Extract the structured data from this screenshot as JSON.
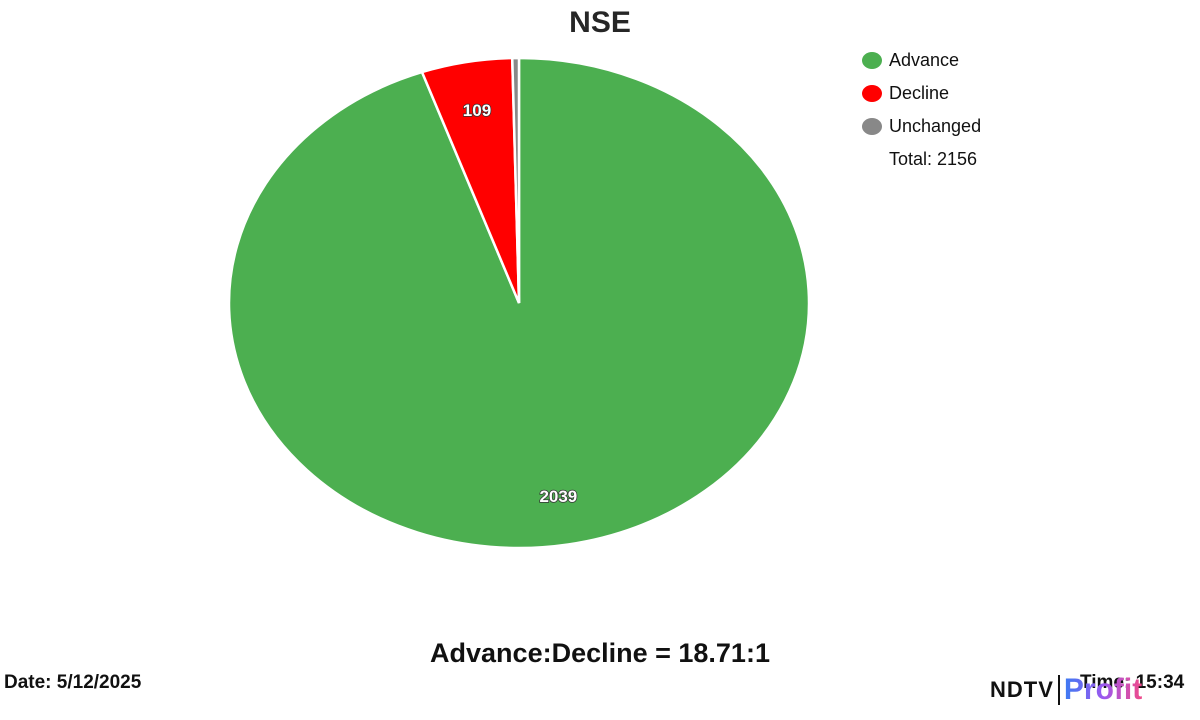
{
  "title": "NSE",
  "legend": {
    "items": [
      {
        "label": "Advance",
        "color": "#4caf50"
      },
      {
        "label": "Decline",
        "color": "#ff0000"
      },
      {
        "label": "Unchanged",
        "color": "#888888"
      }
    ],
    "total_label": "Total: 2156"
  },
  "ratio_text": "Advance:Decline = 18.71:1",
  "date_text": "Date: 5/12/2025",
  "time_text": "Time: 15:34",
  "logo": {
    "ndtv": "NDTV",
    "profit": "Profit"
  },
  "chart_data": {
    "type": "pie",
    "title": "NSE",
    "categories": [
      "Advance",
      "Decline",
      "Unchanged"
    ],
    "values": [
      2039,
      109,
      8
    ],
    "colors": [
      "#4caf50",
      "#ff0000",
      "#888888"
    ],
    "data_labels": [
      "2039",
      "109",
      ""
    ],
    "total": 2156,
    "legend_position": "right",
    "annotations": [
      "Advance:Decline = 18.71:1",
      "Date: 5/12/2025",
      "Time: 15:34"
    ]
  }
}
